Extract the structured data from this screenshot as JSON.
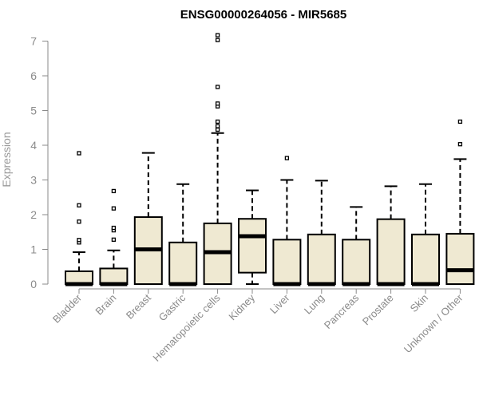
{
  "chart_data": {
    "type": "box",
    "title": "ENSG00000264056 - MIR5685",
    "ylabel": "Expression",
    "xlabel": "",
    "ylim": [
      0,
      7
    ],
    "yticks": [
      0,
      1,
      2,
      3,
      4,
      5,
      6,
      7
    ],
    "box_fill": "#efe9d2",
    "categories": [
      "Bladder",
      "Brain",
      "Breast",
      "Gastric",
      "Hematopoietic cells",
      "Kidney",
      "Liver",
      "Lung",
      "Pancreas",
      "Prostate",
      "Skin",
      "Unknown / Other"
    ],
    "boxes": [
      {
        "q1": 0,
        "median": 0,
        "q3": 0.37,
        "whisker_low": 0,
        "whisker_high": 0.92,
        "outliers": [
          1.2,
          1.27,
          1.8,
          2.27,
          3.77
        ]
      },
      {
        "q1": 0,
        "median": 0,
        "q3": 0.45,
        "whisker_low": 0,
        "whisker_high": 0.97,
        "outliers": [
          1.28,
          1.55,
          1.62,
          2.18,
          2.68
        ]
      },
      {
        "q1": 0,
        "median": 1.0,
        "q3": 1.93,
        "whisker_low": 0,
        "whisker_high": 3.78,
        "outliers": []
      },
      {
        "q1": 0,
        "median": 0,
        "q3": 1.2,
        "whisker_low": 0,
        "whisker_high": 2.88,
        "outliers": []
      },
      {
        "q1": 0,
        "median": 0.92,
        "q3": 1.75,
        "whisker_low": 0,
        "whisker_high": 4.35,
        "outliers": [
          4.45,
          4.55,
          4.68,
          5.12,
          5.2,
          5.68,
          7.03,
          7.17
        ]
      },
      {
        "q1": 0.33,
        "median": 1.38,
        "q3": 1.88,
        "whisker_low": 0,
        "whisker_high": 2.7,
        "outliers": []
      },
      {
        "q1": 0,
        "median": 0,
        "q3": 1.28,
        "whisker_low": 0,
        "whisker_high": 3.0,
        "outliers": [
          3.63
        ]
      },
      {
        "q1": 0,
        "median": 0,
        "q3": 1.43,
        "whisker_low": 0,
        "whisker_high": 2.98,
        "outliers": []
      },
      {
        "q1": 0,
        "median": 0,
        "q3": 1.28,
        "whisker_low": 0,
        "whisker_high": 2.22,
        "outliers": []
      },
      {
        "q1": 0,
        "median": 0,
        "q3": 1.87,
        "whisker_low": 0,
        "whisker_high": 2.82,
        "outliers": []
      },
      {
        "q1": 0,
        "median": 0,
        "q3": 1.43,
        "whisker_low": 0,
        "whisker_high": 2.88,
        "outliers": []
      },
      {
        "q1": 0,
        "median": 0.4,
        "q3": 1.45,
        "whisker_low": 0,
        "whisker_high": 3.6,
        "outliers": [
          4.03,
          4.68
        ]
      }
    ]
  }
}
